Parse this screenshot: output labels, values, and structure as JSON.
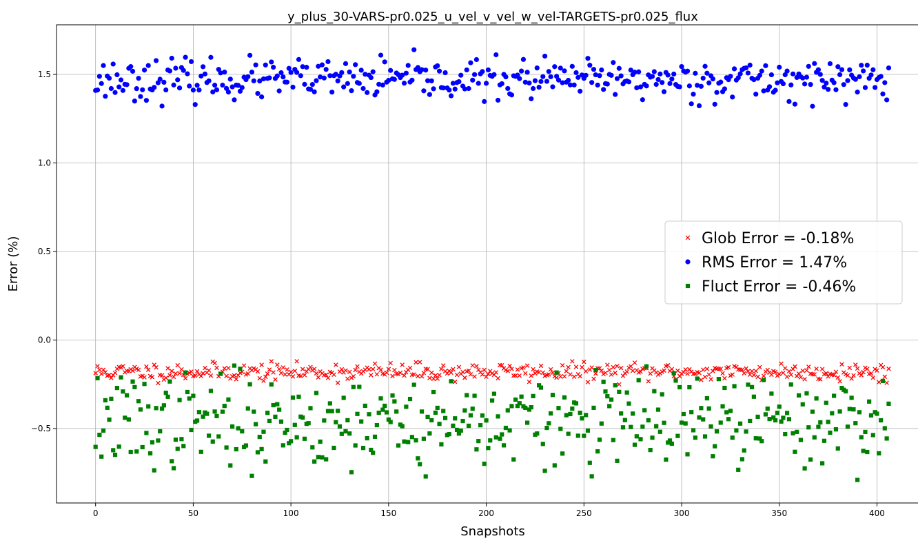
{
  "chart_data": {
    "type": "scatter",
    "title": "y_plus_30-VARS-pr0.025_u_vel_v_vel_w_vel-TARGETS-pr0.025_flux",
    "xlabel": "Snapshots",
    "ylabel": "Error (%)",
    "xlim": [
      -20,
      427
    ],
    "ylim": [
      -0.92,
      1.78
    ],
    "xticks": [
      0,
      50,
      100,
      150,
      200,
      250,
      300,
      350,
      400
    ],
    "yticks": [
      -0.5,
      0.0,
      0.5,
      1.0,
      1.5
    ],
    "ytick_labels": [
      "−0.5",
      "0.0",
      "0.5",
      "1.0",
      "1.5"
    ],
    "grid": true,
    "legend_position": "center-right",
    "n_points": 407,
    "series": [
      {
        "name": "Glob Error = -0.18%",
        "marker": "x",
        "color": "#ff0000",
        "mean": -0.18,
        "spread": 0.025,
        "min": -0.26,
        "max": -0.12,
        "seed": 11
      },
      {
        "name": "RMS Error = 1.47%",
        "marker": "circle",
        "color": "#0000ff",
        "mean": 1.47,
        "spread": 0.055,
        "min": 1.32,
        "max": 1.67,
        "seed": 23
      },
      {
        "name": "Fluct Error = -0.46%",
        "marker": "square",
        "color": "#008000",
        "mean": -0.46,
        "spread": 0.13,
        "min": -0.79,
        "max": -0.06,
        "seed": 37
      }
    ]
  }
}
